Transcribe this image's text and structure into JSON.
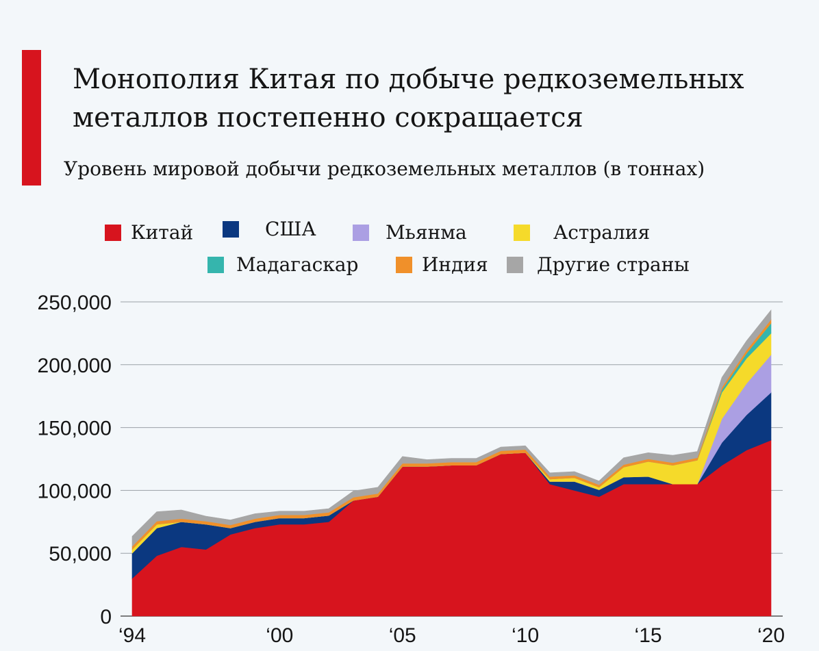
{
  "title": "Монополия Китая по добыче редкоземельных металлов постепенно сокращается",
  "subtitle": "Уровень мировой добычи редкоземельных металлов (в тоннах)",
  "colors": {
    "accent": "#d7141e",
    "grid": "#9aa0a6",
    "background": "#f3f7fa"
  },
  "chart_data": {
    "type": "area",
    "stacked": true,
    "title": "Монополия Китая по добыче редкоземельных металлов постепенно сокращается",
    "subtitle": "Уровень мировой добычи редкоземельных металлов (в тоннах)",
    "legend_position": "top",
    "grid": "horizontal",
    "ylim": [
      0,
      250000
    ],
    "xlim": [
      1994,
      2020
    ],
    "y_ticks": [
      0,
      50000,
      100000,
      150000,
      200000,
      250000
    ],
    "y_tick_labels": [
      "0",
      "50,000",
      "100,000",
      "150,000",
      "200,000",
      "250,000"
    ],
    "x_ticks": [
      1994,
      2000,
      2005,
      2010,
      2015,
      2020
    ],
    "x_tick_labels": [
      "‘94",
      "‘00",
      "‘05",
      "‘10",
      "‘15",
      "‘20"
    ],
    "x": [
      1994,
      1995,
      1996,
      1997,
      1998,
      1999,
      2000,
      2001,
      2002,
      2003,
      2004,
      2005,
      2006,
      2007,
      2008,
      2009,
      2010,
      2011,
      2012,
      2013,
      2014,
      2015,
      2016,
      2017,
      2018,
      2019,
      2020
    ],
    "series": [
      {
        "name": "Китай",
        "color": "#d7141e",
        "values": [
          30000,
          48000,
          55000,
          53000,
          65000,
          70000,
          73000,
          73000,
          75000,
          92000,
          95000,
          119000,
          119000,
          120000,
          120000,
          129000,
          130000,
          105000,
          100000,
          95000,
          105000,
          105000,
          105000,
          105000,
          120000,
          132000,
          140000
        ]
      },
      {
        "name": "США",
        "color": "#0b3880",
        "values": [
          20000,
          22000,
          20000,
          20000,
          5000,
          5000,
          5000,
          5000,
          5000,
          0,
          0,
          0,
          0,
          0,
          0,
          0,
          0,
          2000,
          7000,
          5500,
          5500,
          6000,
          0,
          0,
          18000,
          28000,
          38000
        ]
      },
      {
        "name": "Мьянма",
        "color": "#ab9fe3",
        "values": [
          0,
          0,
          0,
          0,
          0,
          0,
          0,
          0,
          0,
          0,
          0,
          0,
          0,
          0,
          0,
          0,
          0,
          0,
          0,
          0,
          0,
          0,
          0,
          0,
          19000,
          25000,
          30000
        ]
      },
      {
        "name": "Астралия",
        "color": "#f5da2a",
        "values": [
          3000,
          3000,
          0,
          0,
          0,
          0,
          0,
          0,
          0,
          0,
          0,
          0,
          0,
          0,
          0,
          0,
          0,
          2000,
          3000,
          2000,
          8000,
          12000,
          15000,
          19000,
          21000,
          20000,
          17000
        ]
      },
      {
        "name": "Мадагаскар",
        "color": "#35b5ad",
        "values": [
          0,
          0,
          0,
          0,
          0,
          0,
          0,
          0,
          0,
          0,
          0,
          0,
          0,
          0,
          0,
          0,
          0,
          0,
          0,
          0,
          0,
          0,
          0,
          0,
          2000,
          4000,
          8000
        ]
      },
      {
        "name": "Индия",
        "color": "#f0902a",
        "values": [
          2500,
          2500,
          2500,
          2500,
          2500,
          2500,
          2500,
          2500,
          2500,
          2500,
          2500,
          2500,
          2500,
          2500,
          2500,
          2500,
          2500,
          2000,
          2000,
          2000,
          2000,
          2000,
          2000,
          2000,
          2000,
          2500,
          3000
        ]
      },
      {
        "name": "Другие страны",
        "color": "#a6a6a6",
        "values": [
          8000,
          7500,
          7000,
          4000,
          4000,
          4000,
          3000,
          3000,
          3000,
          5000,
          5000,
          5500,
          3000,
          3000,
          3000,
          3000,
          3000,
          3000,
          3000,
          3000,
          5500,
          5000,
          6000,
          5000,
          8000,
          7500,
          7500
        ]
      }
    ]
  }
}
